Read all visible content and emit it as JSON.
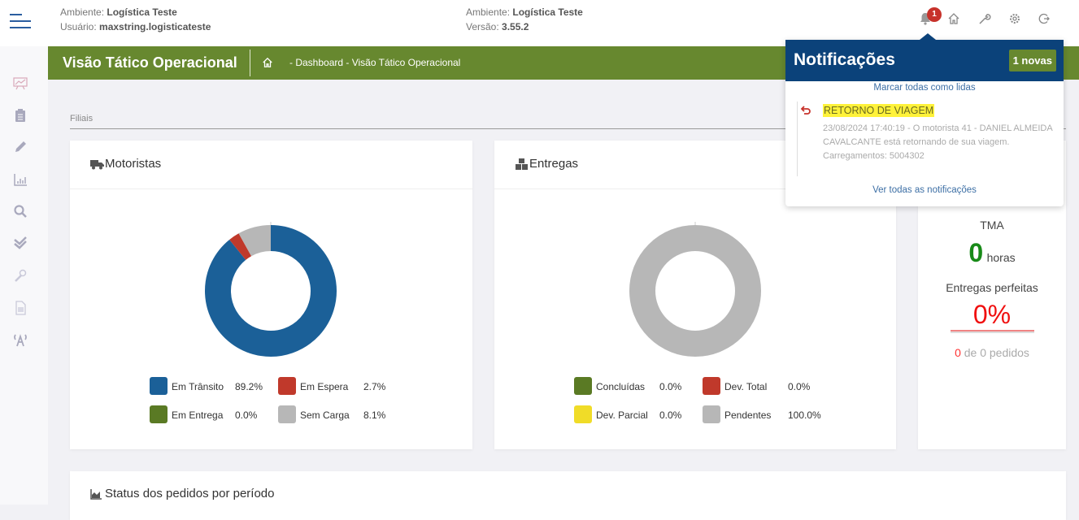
{
  "topbar": {
    "env_label": "Ambiente:",
    "env_value": "Logística Teste",
    "user_label": "Usuário:",
    "user_value": "maxstring.logisticateste",
    "env2_label": "Ambiente:",
    "env2_value": "Logística Teste",
    "version_label": "Versão:",
    "version_value": "3.55.2",
    "notification_count": "1",
    "icons": [
      "bell-icon",
      "home-icon",
      "wrench-icon",
      "gear-icon",
      "logout-icon"
    ]
  },
  "sidebar": {
    "icons": [
      "presentation-chart-icon",
      "clipboard-icon",
      "pencil-icon",
      "bar-chart-icon",
      "search-icon",
      "double-check-icon",
      "wrench-tool-icon",
      "document-icon",
      "antenna-icon"
    ]
  },
  "page": {
    "title": "Visão Tático Operacional",
    "breadcrumb": "- Dashboard - Visão Tático Operacional",
    "filter_label": "Filiais"
  },
  "colors": {
    "green": "#67882f",
    "navy": "#0b427a",
    "blue": "#1b6098",
    "red": "#c0392b",
    "olive": "#5a7a24",
    "gray": "#b7b7b7",
    "yellow": "#f0dc28"
  },
  "motoristas": {
    "title": "Motoristas",
    "legend": [
      {
        "label": "Em Trânsito",
        "value": "89.2%",
        "color": "#1b6098"
      },
      {
        "label": "Em Espera",
        "value": "2.7%",
        "color": "#c0392b"
      },
      {
        "label": "Em Entrega",
        "value": "0.0%",
        "color": "#5a7a24"
      },
      {
        "label": "Sem Carga",
        "value": "8.1%",
        "color": "#b7b7b7"
      }
    ]
  },
  "entregas": {
    "title": "Entregas",
    "legend": [
      {
        "label": "Concluídas",
        "value": "0.0%",
        "color": "#5a7a24"
      },
      {
        "label": "Dev. Total",
        "value": "0.0%",
        "color": "#c0392b"
      },
      {
        "label": "Dev. Parcial",
        "value": "0.0%",
        "color": "#f0dc28"
      },
      {
        "label": "Pendentes",
        "value": "100.0%",
        "color": "#b7b7b7"
      }
    ]
  },
  "kpi": {
    "tma_label": "TMA",
    "tma_value": "0",
    "tma_unit": "horas",
    "perfect_label": "Entregas perfeitas",
    "perfect_value": "0%",
    "perfect_count": "0",
    "perfect_of": "de 0 pedidos"
  },
  "status_card": {
    "title": "Status dos pedidos por período"
  },
  "notifications": {
    "title": "Notificações",
    "new_badge": "1 novas",
    "mark_all": "Marcar todas como lidas",
    "view_all": "Ver todas as notificações",
    "items": [
      {
        "title": "RETORNO DE VIAGEM",
        "text": "23/08/2024 17:40:19 - O motorista 41 - DANIEL ALMEIDA CAVALCANTE está retornando de sua viagem. Carregamentos: 5004302"
      }
    ]
  }
}
